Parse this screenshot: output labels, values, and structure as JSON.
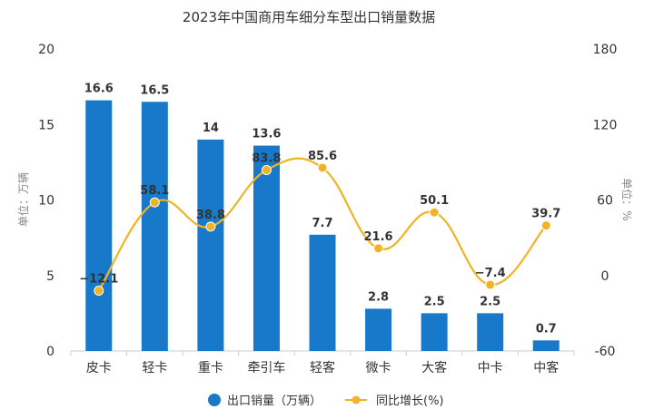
{
  "chart_data": {
    "type": "bar",
    "title": "2023年中国商用车细分车型出口销量数据",
    "categories": [
      "皮卡",
      "轻卡",
      "重卡",
      "牵引车",
      "轻客",
      "微卡",
      "大客",
      "中卡",
      "中客"
    ],
    "series": [
      {
        "name": "出口销量（万辆）",
        "type": "bar",
        "axis": "left",
        "color": "#1878c9",
        "values": [
          16.6,
          16.5,
          14,
          13.6,
          7.7,
          2.8,
          2.5,
          2.5,
          0.7
        ],
        "labels": [
          "16.6",
          "16.5",
          "14",
          "13.6",
          "7.7",
          "2.8",
          "2.5",
          "2.5",
          "0.7"
        ]
      },
      {
        "name": "同比增长(%)",
        "type": "line",
        "axis": "right",
        "color": "#f0b323",
        "values": [
          -12.1,
          58.1,
          38.8,
          83.8,
          85.6,
          21.6,
          50.1,
          -7.4,
          39.7
        ],
        "labels": [
          "−12.1",
          "58.1",
          "38.8",
          "83.8",
          "85.6",
          "21.6",
          "50.1",
          "−7.4",
          "39.7"
        ]
      }
    ],
    "y_left": {
      "label": "单位：万辆",
      "min": 0,
      "max": 20,
      "ticks": [
        0,
        5,
        10,
        15,
        20
      ]
    },
    "y_right": {
      "label": "单位：%",
      "min": -60,
      "max": 180,
      "ticks": [
        -60,
        0,
        60,
        120,
        180
      ]
    },
    "legend_position": "bottom-center",
    "grid": false
  }
}
